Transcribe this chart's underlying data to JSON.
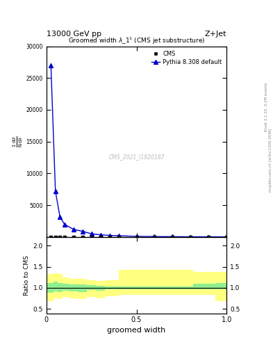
{
  "top_label": "13000 GeV pp",
  "right_label": "Z+Jet",
  "title": "Groomed width λ_1¹ (CMS jet substructure)",
  "xlabel": "groomed width",
  "watermark": "CMS_2021_I1920187",
  "cms_label": "CMS",
  "mc_label": "Pythia 8.308 default",
  "cms_x": [
    0.025,
    0.05,
    0.075,
    0.1,
    0.15,
    0.2,
    0.25,
    0.3,
    0.35,
    0.4,
    0.5,
    0.6,
    0.7,
    0.8,
    0.9,
    1.0
  ],
  "cms_y": [
    30,
    30,
    30,
    30,
    30,
    30,
    30,
    30,
    30,
    30,
    30,
    30,
    30,
    30,
    30,
    30
  ],
  "mc_x": [
    0.025,
    0.05,
    0.075,
    0.1,
    0.15,
    0.2,
    0.25,
    0.3,
    0.35,
    0.4,
    0.5,
    0.6,
    0.7,
    0.8,
    0.9,
    1.0
  ],
  "mc_y": [
    27000,
    7200,
    3200,
    2000,
    1200,
    900,
    500,
    350,
    250,
    200,
    100,
    70,
    50,
    35,
    25,
    18
  ],
  "ratio_x": [
    0.0,
    0.025,
    0.05,
    0.075,
    0.1,
    0.15,
    0.2,
    0.25,
    0.3,
    0.35,
    0.45,
    0.55,
    0.65,
    0.75,
    0.875,
    1.0
  ],
  "ratio_green_lo": [
    0.88,
    0.88,
    0.92,
    0.9,
    0.93,
    0.91,
    0.9,
    0.95,
    0.94,
    0.96,
    0.97,
    0.97,
    0.97,
    0.97,
    0.97,
    0.97
  ],
  "ratio_green_hi": [
    1.12,
    1.12,
    1.15,
    1.12,
    1.1,
    1.08,
    1.08,
    1.06,
    1.05,
    1.04,
    1.03,
    1.03,
    1.03,
    1.03,
    1.1,
    1.12
  ],
  "ratio_yellow_lo": [
    0.68,
    0.68,
    0.75,
    0.73,
    0.78,
    0.76,
    0.74,
    0.78,
    0.76,
    0.8,
    0.84,
    0.84,
    0.84,
    0.84,
    0.84,
    0.68
  ],
  "ratio_yellow_hi": [
    1.32,
    1.32,
    1.35,
    1.32,
    1.24,
    1.22,
    1.22,
    1.18,
    1.16,
    1.18,
    1.42,
    1.42,
    1.42,
    1.42,
    1.38,
    1.38
  ],
  "ylim_main": [
    0,
    30000
  ],
  "ylim_ratio": [
    0.4,
    2.2
  ],
  "xlim": [
    0,
    1.0
  ],
  "color_cms": "#000000",
  "color_mc": "#0000cc",
  "color_green": "#90EE90",
  "color_yellow": "#FFFF80",
  "color_ratio_line": "#000000",
  "main_yticks": [
    0,
    5000,
    10000,
    15000,
    20000,
    25000,
    30000
  ],
  "ratio_yticks": [
    0.5,
    1.0,
    1.5,
    2.0
  ],
  "xticks": [
    0,
    0.5,
    1.0
  ],
  "right_text1": "Rivet 3.1.10, 3.2M events",
  "right_text2": "mcplots.cern.ch [arXiv:1306.3436]"
}
